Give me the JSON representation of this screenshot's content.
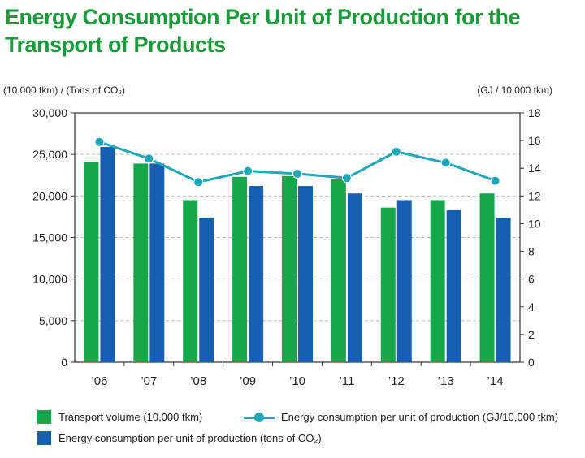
{
  "title": "Energy Consumption Per Unit of Production for the Transport of Products",
  "left_axis_unit": "(10,000 tkm) / (Tons of CO₂)",
  "right_axis_unit": "(GJ / 10,000 tkm)",
  "colors": {
    "transport": "#14a84b",
    "co2": "#1760b0",
    "energy_line": "#1ea7b8",
    "title": "#1a9a3a"
  },
  "chart_data": {
    "type": "bar",
    "title": "Energy Consumption Per Unit of Production for the Transport of Products",
    "categories": [
      "’06",
      "’07",
      "’08",
      "’09",
      "’10",
      "’11",
      "’12",
      "’13",
      "’14"
    ],
    "y_left": {
      "min": 0,
      "max": 30000,
      "step": 5000,
      "ticks": [
        "0",
        "5,000",
        "10,000",
        "15,000",
        "20,000",
        "25,000",
        "30,000"
      ]
    },
    "y_right": {
      "min": 0,
      "max": 18,
      "step": 2,
      "ticks": [
        "0",
        "2",
        "4",
        "6",
        "8",
        "10",
        "12",
        "14",
        "16",
        "18"
      ]
    },
    "grid": true,
    "series": [
      {
        "name": "Transport volume (10,000 tkm)",
        "type": "bar",
        "axis": "left",
        "values": [
          24100,
          23900,
          19500,
          22300,
          22400,
          22000,
          18600,
          19500,
          20300
        ]
      },
      {
        "name": "Energy consumption per unit of production (tons of CO₂)",
        "type": "bar",
        "axis": "left",
        "values": [
          25900,
          23900,
          17400,
          21200,
          21200,
          20300,
          19500,
          18300,
          17400
        ]
      },
      {
        "name": "Energy consumption per unit of production (GJ/10,000 tkm)",
        "type": "line",
        "axis": "right",
        "values": [
          15.9,
          14.7,
          13.0,
          13.8,
          13.6,
          13.3,
          15.2,
          14.4,
          13.1
        ]
      }
    ]
  },
  "legend": {
    "transport": "Transport volume (10,000 tkm)",
    "energy_line": "Energy consumption per unit of production (GJ/10,000 tkm)",
    "co2": "Energy consumption per unit of production (tons of CO₂)"
  }
}
